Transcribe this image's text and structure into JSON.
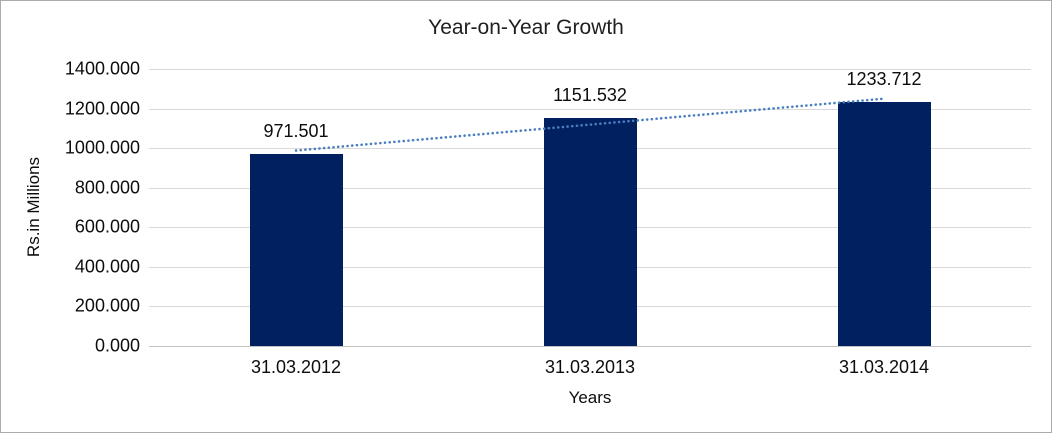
{
  "window": {
    "background_color": "#ffffff",
    "border_color": "#ababab"
  },
  "chart_data": {
    "type": "bar",
    "title": "Year-on-Year Growth",
    "xlabel": "Years",
    "ylabel": "Rs.in Millions",
    "categories": [
      "31.03.2012",
      "31.03.2013",
      "31.03.2014"
    ],
    "values": [
      971.501,
      1151.532,
      1233.712
    ],
    "data_labels": [
      "971.501",
      "1151.532",
      "1233.712"
    ],
    "ylim": [
      0,
      1400
    ],
    "ytick_step": 200,
    "ytick_labels": [
      "0.000",
      "200.000",
      "400.000",
      "600.000",
      "800.000",
      "1000.000",
      "1200.000",
      "1400.000"
    ],
    "grid": true,
    "legend": "none",
    "bar_color": "#002060",
    "gridline_color": "#d9d9d9",
    "axis_line_color": "#c3c3c3",
    "text_color": "#0d0d0d",
    "trendline": {
      "type": "linear",
      "style": "dotted",
      "color": "#4a7ebf"
    }
  }
}
